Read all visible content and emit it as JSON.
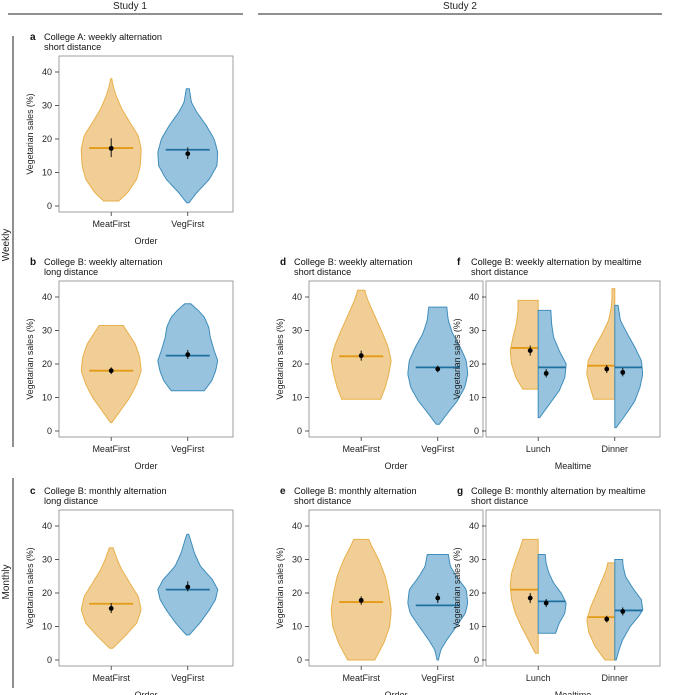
{
  "figure": {
    "study_labels": [
      "Study 1",
      "Study 2"
    ],
    "row_labels": [
      "Weekly",
      "Monthly"
    ],
    "ylabel": "Vegetarian sales (%)",
    "colors": {
      "meat": "#e8b04a",
      "meat_fill": "#f0c98a",
      "meat_median": "#e39a17",
      "veg": "#3f8dbb",
      "veg_fill": "#8cbcda",
      "veg_median": "#1f6f9f",
      "mean_dot": "#000000",
      "frame": "#888888"
    }
  },
  "chart_data": [
    {
      "id": "a",
      "type": "violin",
      "title": [
        "College A: weekly alternation",
        "short distance"
      ],
      "xlabel": "Order",
      "ylabel": "Vegetarian sales (%)",
      "ylim": [
        0,
        40
      ],
      "yticks": [
        0,
        10,
        20,
        30,
        40
      ],
      "categories": [
        "MeatFirst",
        "VegFirst"
      ],
      "split": false,
      "groups": [
        {
          "name": "MeatFirst",
          "min": 1.5,
          "max": 38,
          "median": 17.3,
          "mean": 17.2,
          "ci": [
            14.6,
            20.2
          ],
          "profile": [
            [
              1.5,
              0.25
            ],
            [
              4,
              0.55
            ],
            [
              8,
              0.85
            ],
            [
              12,
              0.97
            ],
            [
              17,
              1.0
            ],
            [
              21,
              0.9
            ],
            [
              25,
              0.62
            ],
            [
              29,
              0.35
            ],
            [
              33,
              0.16
            ],
            [
              36,
              0.06
            ],
            [
              38,
              0.02
            ]
          ]
        },
        {
          "name": "VegFirst",
          "min": 1,
          "max": 35,
          "median": 16.8,
          "mean": 15.6,
          "ci": [
            14,
            17.5
          ],
          "profile": [
            [
              1,
              0.04
            ],
            [
              4,
              0.3
            ],
            [
              8,
              0.72
            ],
            [
              12,
              0.97
            ],
            [
              16,
              1.0
            ],
            [
              20,
              0.88
            ],
            [
              24,
              0.62
            ],
            [
              28,
              0.3
            ],
            [
              31,
              0.12
            ],
            [
              35,
              0.05
            ]
          ]
        }
      ]
    },
    {
      "id": "b",
      "type": "violin",
      "title": [
        "College B: weekly alternation",
        "long distance"
      ],
      "xlabel": "Order",
      "ylabel": "Vegetarian sales (%)",
      "ylim": [
        0,
        40
      ],
      "yticks": [
        0,
        10,
        20,
        30,
        40
      ],
      "categories": [
        "MeatFirst",
        "VegFirst"
      ],
      "split": false,
      "groups": [
        {
          "name": "MeatFirst",
          "min": 2.5,
          "max": 31.5,
          "median": 18,
          "mean": 18,
          "ci": [
            17,
            19
          ],
          "profile": [
            [
              2.5,
              0.02
            ],
            [
              6,
              0.3
            ],
            [
              10,
              0.62
            ],
            [
              14,
              0.85
            ],
            [
              18,
              1.0
            ],
            [
              22,
              0.95
            ],
            [
              26,
              0.8
            ],
            [
              29,
              0.58
            ],
            [
              31.5,
              0.4
            ]
          ]
        },
        {
          "name": "VegFirst",
          "min": 12,
          "max": 38,
          "median": 22.5,
          "mean": 22.8,
          "ci": [
            21.5,
            24.2
          ],
          "profile": [
            [
              12,
              0.55
            ],
            [
              15,
              0.8
            ],
            [
              18,
              0.93
            ],
            [
              21,
              1.0
            ],
            [
              24,
              0.88
            ],
            [
              28,
              0.75
            ],
            [
              31,
              0.7
            ],
            [
              34,
              0.55
            ],
            [
              36,
              0.35
            ],
            [
              38,
              0.1
            ]
          ]
        }
      ]
    },
    {
      "id": "c",
      "type": "violin",
      "title": [
        "College B: monthly alternation",
        "long distance"
      ],
      "xlabel": "Order",
      "ylabel": "Vegetarian sales (%)",
      "ylim": [
        0,
        40
      ],
      "yticks": [
        0,
        10,
        20,
        30,
        40
      ],
      "categories": [
        "MeatFirst",
        "VegFirst"
      ],
      "split": false,
      "groups": [
        {
          "name": "MeatFirst",
          "min": 3.5,
          "max": 33.5,
          "median": 16.8,
          "mean": 15.4,
          "ci": [
            14,
            17
          ],
          "profile": [
            [
              3.5,
              0.05
            ],
            [
              7,
              0.45
            ],
            [
              11,
              0.85
            ],
            [
              15,
              1.0
            ],
            [
              19,
              0.9
            ],
            [
              23,
              0.62
            ],
            [
              27,
              0.35
            ],
            [
              30,
              0.2
            ],
            [
              33.5,
              0.06
            ]
          ]
        },
        {
          "name": "VegFirst",
          "min": 7.5,
          "max": 37.5,
          "median": 21,
          "mean": 21.8,
          "ci": [
            20.5,
            23.5
          ],
          "profile": [
            [
              7.5,
              0.05
            ],
            [
              11,
              0.4
            ],
            [
              15,
              0.72
            ],
            [
              18,
              0.92
            ],
            [
              21,
              1.0
            ],
            [
              24,
              0.82
            ],
            [
              28,
              0.42
            ],
            [
              32,
              0.22
            ],
            [
              35,
              0.12
            ],
            [
              37.5,
              0.03
            ]
          ]
        }
      ]
    },
    {
      "id": "d",
      "type": "violin",
      "title": [
        "College B: weekly alternation",
        "short distance"
      ],
      "xlabel": "Order",
      "ylabel": "Vegetarian sales (%)",
      "ylim": [
        0,
        40
      ],
      "yticks": [
        0,
        10,
        20,
        30,
        40
      ],
      "categories": [
        "MeatFirst",
        "VegFirst"
      ],
      "split": false,
      "groups": [
        {
          "name": "MeatFirst",
          "min": 9.5,
          "max": 42,
          "median": 22.3,
          "mean": 22.5,
          "ci": [
            21,
            24
          ],
          "profile": [
            [
              9.5,
              0.65
            ],
            [
              13,
              0.8
            ],
            [
              17,
              0.92
            ],
            [
              21,
              1.0
            ],
            [
              25,
              0.9
            ],
            [
              29,
              0.72
            ],
            [
              33,
              0.52
            ],
            [
              37,
              0.32
            ],
            [
              40,
              0.18
            ],
            [
              42,
              0.12
            ]
          ]
        },
        {
          "name": "VegFirst",
          "min": 2,
          "max": 37,
          "median": 19,
          "mean": 18.5,
          "ci": [
            17.5,
            19.5
          ],
          "profile": [
            [
              2,
              0.05
            ],
            [
              5,
              0.3
            ],
            [
              9,
              0.65
            ],
            [
              13,
              0.9
            ],
            [
              17,
              1.0
            ],
            [
              21,
              0.95
            ],
            [
              25,
              0.75
            ],
            [
              29,
              0.5
            ],
            [
              33,
              0.35
            ],
            [
              37,
              0.3
            ]
          ]
        }
      ]
    },
    {
      "id": "e",
      "type": "violin",
      "title": [
        "College B: monthly alternation",
        "short distance"
      ],
      "xlabel": "Order",
      "ylabel": "Vegetarian sales (%)",
      "ylim": [
        0,
        40
      ],
      "yticks": [
        0,
        10,
        20,
        30,
        40
      ],
      "categories": [
        "MeatFirst",
        "VegFirst"
      ],
      "split": false,
      "groups": [
        {
          "name": "MeatFirst",
          "min": 0,
          "max": 36,
          "median": 17.3,
          "mean": 17.8,
          "ci": [
            16.5,
            19
          ],
          "profile": [
            [
              0,
              0.45
            ],
            [
              5,
              0.75
            ],
            [
              10,
              0.95
            ],
            [
              15,
              1.0
            ],
            [
              20,
              0.92
            ],
            [
              25,
              0.8
            ],
            [
              30,
              0.58
            ],
            [
              34,
              0.35
            ],
            [
              36,
              0.25
            ]
          ]
        },
        {
          "name": "VegFirst",
          "min": 0,
          "max": 31.5,
          "median": 16.3,
          "mean": 18.5,
          "ci": [
            17,
            20
          ],
          "profile": [
            [
              0,
              0.02
            ],
            [
              3,
              0.1
            ],
            [
              6,
              0.3
            ],
            [
              10,
              0.62
            ],
            [
              14,
              0.92
            ],
            [
              17,
              1.0
            ],
            [
              21,
              0.95
            ],
            [
              25,
              0.62
            ],
            [
              28,
              0.42
            ],
            [
              31.5,
              0.35
            ]
          ]
        }
      ]
    },
    {
      "id": "f",
      "type": "violin",
      "title": [
        "College B: weekly alternation by mealtime",
        "short distance"
      ],
      "xlabel": "Mealtime",
      "ylabel": "Vegetarian sales (%)",
      "ylim": [
        0,
        40
      ],
      "yticks": [
        0,
        10,
        20,
        30,
        40
      ],
      "categories": [
        "Lunch",
        "Dinner"
      ],
      "split": true,
      "groups": [
        {
          "category": "Lunch",
          "side": "left",
          "name": "MeatFirst",
          "min": 12.5,
          "max": 39,
          "median": 24.8,
          "mean": 24,
          "ci": [
            22.5,
            25.5
          ],
          "profile": [
            [
              12.5,
              0.55
            ],
            [
              16,
              0.8
            ],
            [
              20,
              0.95
            ],
            [
              24,
              1.0
            ],
            [
              28,
              0.9
            ],
            [
              32,
              0.78
            ],
            [
              36,
              0.72
            ],
            [
              39,
              0.72
            ]
          ]
        },
        {
          "category": "Lunch",
          "side": "right",
          "name": "VegFirst",
          "min": 4,
          "max": 36,
          "median": 19,
          "mean": 17.2,
          "ci": [
            16,
            18.5
          ],
          "profile": [
            [
              4,
              0.05
            ],
            [
              8,
              0.4
            ],
            [
              12,
              0.75
            ],
            [
              16,
              0.95
            ],
            [
              20,
              1.0
            ],
            [
              24,
              0.75
            ],
            [
              28,
              0.55
            ],
            [
              32,
              0.48
            ],
            [
              36,
              0.45
            ]
          ]
        },
        {
          "category": "Dinner",
          "side": "left",
          "name": "MeatFirst",
          "min": 9.5,
          "max": 42.5,
          "median": 19.5,
          "mean": 18.5,
          "ci": [
            17.3,
            19.7
          ],
          "profile": [
            [
              9.5,
              0.75
            ],
            [
              13,
              0.88
            ],
            [
              17,
              1.0
            ],
            [
              21,
              0.95
            ],
            [
              25,
              0.72
            ],
            [
              29,
              0.45
            ],
            [
              33,
              0.22
            ],
            [
              37,
              0.12
            ],
            [
              40,
              0.1
            ],
            [
              42.5,
              0.1
            ]
          ]
        },
        {
          "category": "Dinner",
          "side": "right",
          "name": "VegFirst",
          "min": 1,
          "max": 37.5,
          "median": 19,
          "mean": 17.5,
          "ci": [
            16.3,
            18.8
          ],
          "profile": [
            [
              1,
              0.05
            ],
            [
              5,
              0.4
            ],
            [
              9,
              0.72
            ],
            [
              13,
              0.9
            ],
            [
              17,
              1.0
            ],
            [
              21,
              0.95
            ],
            [
              25,
              0.72
            ],
            [
              29,
              0.45
            ],
            [
              33,
              0.2
            ],
            [
              37.5,
              0.12
            ]
          ]
        }
      ]
    },
    {
      "id": "g",
      "type": "violin",
      "title": [
        "College B: monthly alternation by mealtime",
        "short distance"
      ],
      "xlabel": "Mealtime",
      "ylabel": "Vegetarian sales (%)",
      "ylim": [
        0,
        40
      ],
      "yticks": [
        0,
        10,
        20,
        30,
        40
      ],
      "categories": [
        "Lunch",
        "Dinner"
      ],
      "split": true,
      "groups": [
        {
          "category": "Lunch",
          "side": "left",
          "name": "MeatFirst",
          "min": 2,
          "max": 36,
          "median": 21,
          "mean": 18.5,
          "ci": [
            17,
            20
          ],
          "profile": [
            [
              2,
              0.1
            ],
            [
              6,
              0.35
            ],
            [
              10,
              0.6
            ],
            [
              14,
              0.82
            ],
            [
              18,
              0.95
            ],
            [
              22,
              1.0
            ],
            [
              26,
              0.95
            ],
            [
              30,
              0.8
            ],
            [
              34,
              0.62
            ],
            [
              36,
              0.55
            ]
          ]
        },
        {
          "category": "Lunch",
          "side": "right",
          "name": "VegFirst",
          "min": 8,
          "max": 31.5,
          "median": 17.5,
          "mean": 17,
          "ci": [
            15.8,
            18.2
          ],
          "profile": [
            [
              8,
              0.62
            ],
            [
              11,
              0.75
            ],
            [
              14,
              0.95
            ],
            [
              17,
              1.0
            ],
            [
              20,
              0.82
            ],
            [
              23,
              0.55
            ],
            [
              26,
              0.38
            ],
            [
              29,
              0.28
            ],
            [
              31.5,
              0.25
            ]
          ]
        },
        {
          "category": "Dinner",
          "side": "left",
          "name": "MeatFirst",
          "min": 0,
          "max": 29,
          "median": 12.8,
          "mean": 12.2,
          "ci": [
            11.2,
            13.2
          ],
          "profile": [
            [
              0,
              0.35
            ],
            [
              4,
              0.7
            ],
            [
              8,
              0.92
            ],
            [
              12,
              1.0
            ],
            [
              16,
              0.85
            ],
            [
              20,
              0.65
            ],
            [
              24,
              0.45
            ],
            [
              27,
              0.3
            ],
            [
              29,
              0.25
            ]
          ]
        },
        {
          "category": "Dinner",
          "side": "right",
          "name": "VegFirst",
          "min": 0,
          "max": 30,
          "median": 14.8,
          "mean": 14.5,
          "ci": [
            13.3,
            15.7
          ],
          "profile": [
            [
              0,
              0.05
            ],
            [
              3,
              0.15
            ],
            [
              6,
              0.28
            ],
            [
              10,
              0.55
            ],
            [
              13,
              0.85
            ],
            [
              15,
              1.0
            ],
            [
              18,
              0.95
            ],
            [
              21,
              0.68
            ],
            [
              25,
              0.38
            ],
            [
              28,
              0.3
            ],
            [
              30,
              0.28
            ]
          ]
        }
      ]
    }
  ]
}
